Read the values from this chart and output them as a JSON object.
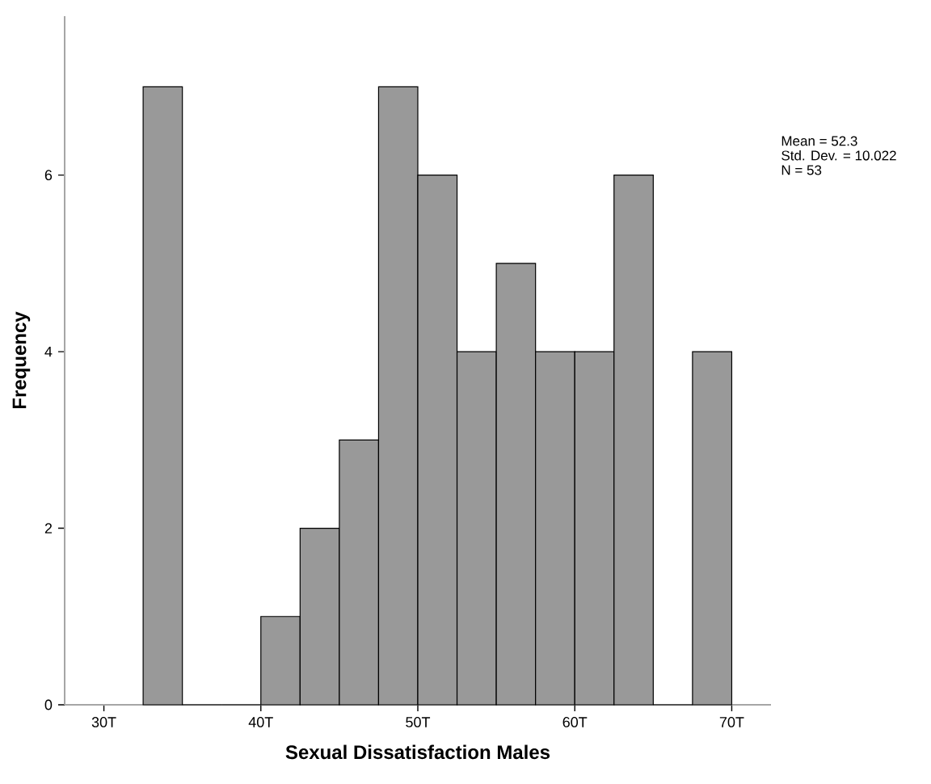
{
  "chart_data": {
    "type": "histogram",
    "xlabel": "Sexual Dissatisfaction Males",
    "ylabel": "Frequency",
    "bins": [
      32.5,
      35,
      37.5,
      40,
      42.5,
      45,
      47.5,
      50,
      52.5,
      55,
      57.5,
      60,
      62.5,
      65,
      67.5,
      70
    ],
    "values": [
      7,
      0,
      0,
      1,
      2,
      3,
      7,
      6,
      4,
      5,
      4,
      4,
      6,
      0,
      4
    ],
    "color": "#999999",
    "xlim": [
      27.5,
      72.5
    ],
    "ylim": [
      0,
      7.8
    ],
    "xticks": [
      {
        "value": 30,
        "label": "30T"
      },
      {
        "value": 40,
        "label": "40T"
      },
      {
        "value": 50,
        "label": "50T"
      },
      {
        "value": 60,
        "label": "60T"
      },
      {
        "value": 70,
        "label": "70T"
      }
    ],
    "yticks": [
      0,
      2,
      4,
      6
    ],
    "annotations": [
      "Mean = 52.3",
      "Std. Dev. = 10.022",
      "N = 53"
    ]
  }
}
